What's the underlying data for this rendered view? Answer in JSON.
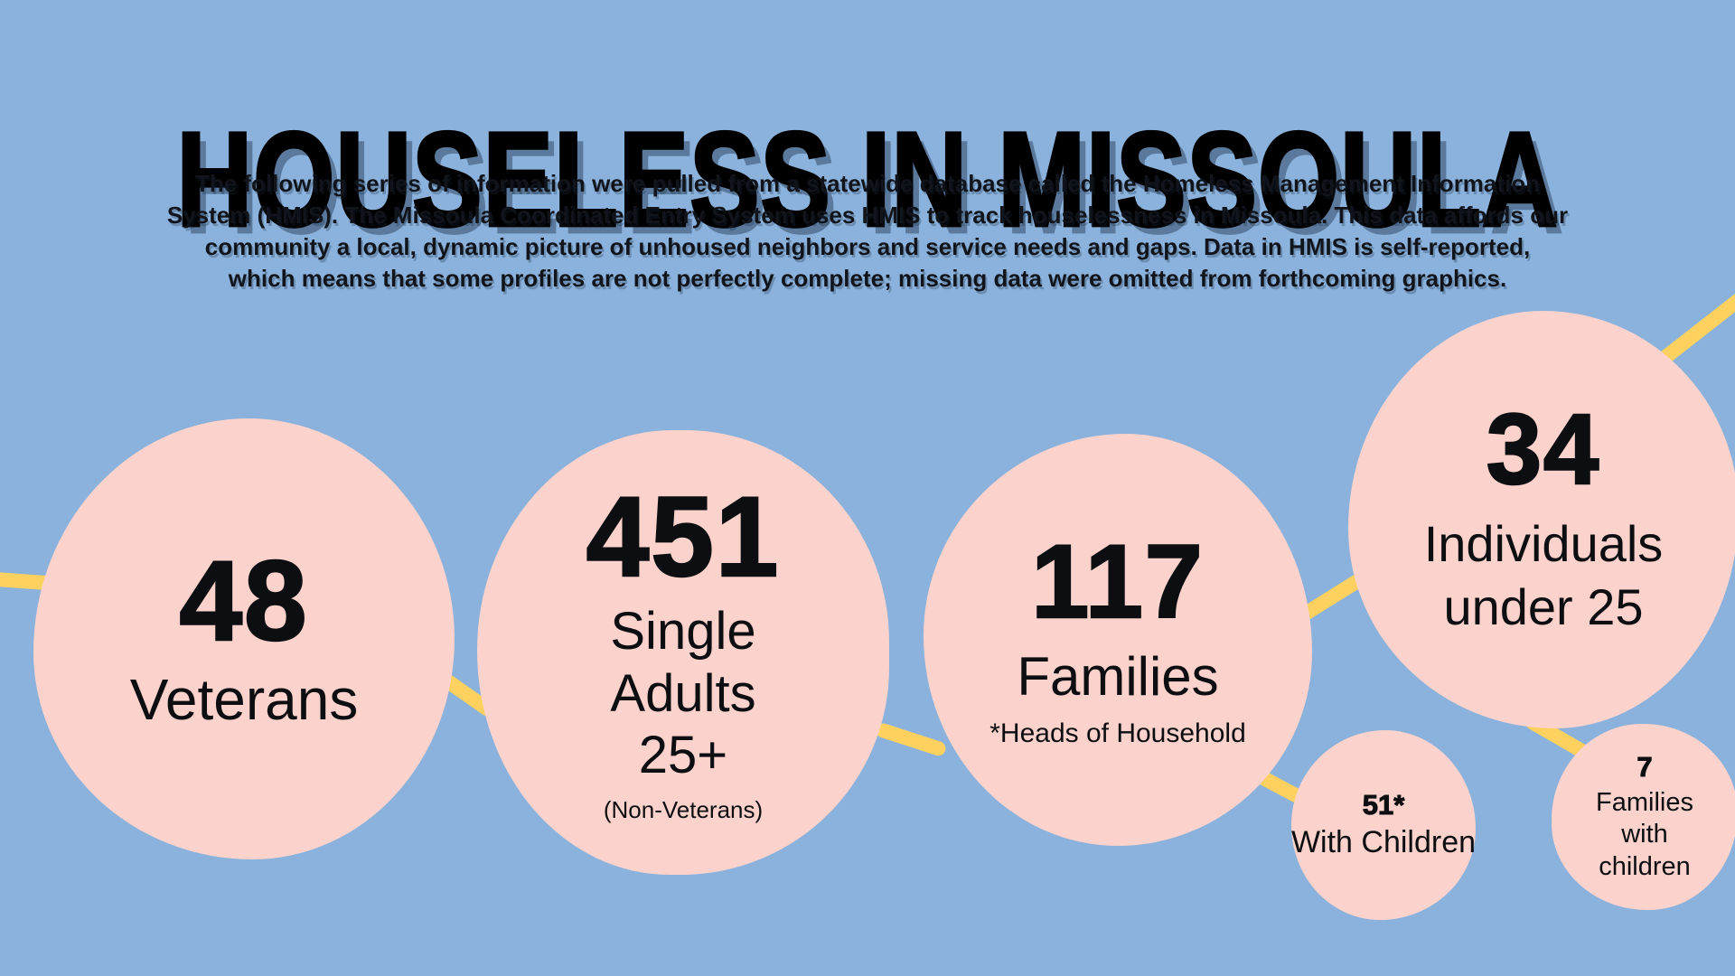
{
  "page": {
    "title": "HOUSELESS IN MISSOULA",
    "intro_lines": [
      "The following series of information were pulled from a statewide database called the Homeless Management Information",
      "System (HMIS). The Missoula Coordinated Entry System uses HMIS to track houselessness in Missoula. This data affords our",
      "community a local, dynamic picture of unhoused neighbors and service needs and gaps. Data in HMIS is self-reported,",
      "which means that some profiles are not perfectly complete; missing data were omitted from forthcoming graphics."
    ]
  },
  "colors": {
    "background": "#8bb2dc",
    "bubble": "#fbd3cc",
    "connector": "#fcd160",
    "text": "#0c0e11",
    "title_shadow": "rgba(23,42,66,0.42)"
  },
  "chart_data": {
    "type": "bubble",
    "title": "HOUSELESS IN MISSOULA",
    "points": [
      {
        "label": "Veterans",
        "value": 48
      },
      {
        "label": "Single Adults 25+ (Non-Veterans)",
        "value": 451
      },
      {
        "label": "Families (*Heads of Household)",
        "value": 117
      },
      {
        "label": "Individuals under 25",
        "value": 34
      },
      {
        "label": "With Children",
        "value": 51,
        "linked_to": "Families (*Heads of Household)"
      },
      {
        "label": "Families with children",
        "value": 7,
        "linked_to": "Individuals under 25"
      }
    ],
    "legend_position": "none",
    "grid": false
  },
  "bubbles": {
    "veterans": {
      "value": "48",
      "label": "Veterans"
    },
    "single_adults": {
      "value": "451",
      "line1": "Single",
      "line2": "Adults",
      "line3": "25+",
      "note": "(Non-Veterans)"
    },
    "families": {
      "value": "117",
      "label": "Families",
      "note": "*Heads of Household"
    },
    "under25": {
      "value": "34",
      "line1": "Individuals",
      "line2": "under 25"
    },
    "with_children": {
      "value": "51*",
      "label": "With Children"
    },
    "families_children": {
      "value": "7",
      "line1": "Families",
      "line2": "with",
      "line3": "children"
    }
  }
}
